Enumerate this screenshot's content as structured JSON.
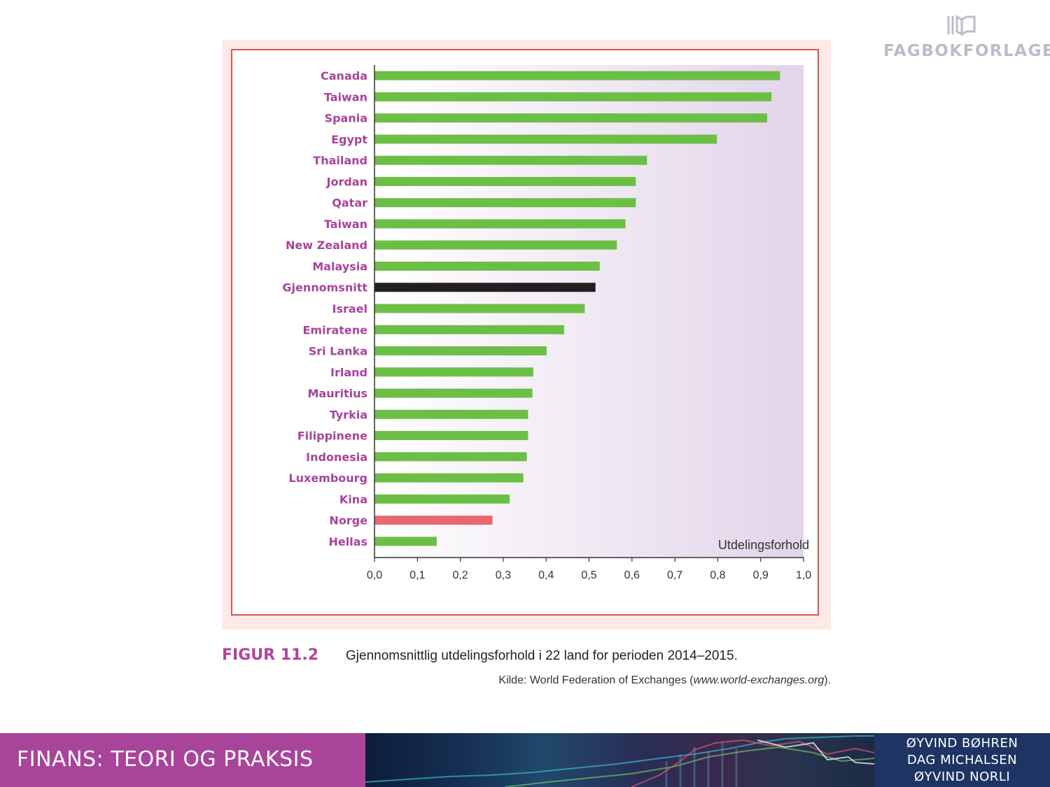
{
  "publisher": {
    "name": "FAGBOKFORLAGET",
    "logo_icon": "book-icon"
  },
  "chart_data": {
    "type": "bar",
    "orientation": "horizontal",
    "categories": [
      "Canada",
      "Taiwan",
      "Spania",
      "Egypt",
      "Thailand",
      "Jordan",
      "Qatar",
      "Taiwan",
      "New Zealand",
      "Malaysia",
      "Gjennomsnitt",
      "Israel",
      "Emiratene",
      "Sri Lanka",
      "Irland",
      "Mauritius",
      "Tyrkia",
      "Filippinene",
      "Indonesia",
      "Luxembourg",
      "Kina",
      "Norge",
      "Hellas"
    ],
    "values": [
      0.945,
      0.925,
      0.915,
      0.798,
      0.635,
      0.609,
      0.609,
      0.585,
      0.565,
      0.525,
      0.515,
      0.49,
      0.442,
      0.401,
      0.37,
      0.368,
      0.358,
      0.358,
      0.355,
      0.347,
      0.315,
      0.275,
      0.145
    ],
    "highlight": {
      "Gjennomsnitt": "#231f20",
      "Norge": "#e8696d"
    },
    "bar_color": "#6cbf46",
    "label_color": "#a8449a",
    "xlabel": "Utdelingsforhold",
    "xlim": [
      0,
      1.0
    ],
    "xticks": [
      "0,0",
      "0,1",
      "0,2",
      "0,3",
      "0,4",
      "0,5",
      "0,6",
      "0,7",
      "0,8",
      "0,9",
      "1,0"
    ],
    "grid": false,
    "background_gradient": [
      "#ffffff",
      "#e2d4e9"
    ]
  },
  "caption": {
    "label": "FIGUR 11.2",
    "text": "Gjennomsnittlig utdelingsforhold i 22 land for perioden 2014–2015.",
    "source_prefix": "Kilde: World Federation of Exchanges (",
    "source_url": "www.world-exchanges.org",
    "source_suffix": ")."
  },
  "footer": {
    "book_title": "FINANS: TEORI OG PRAKSIS",
    "authors": [
      "ØYVIND BØHREN",
      "DAG MICHALSEN",
      "ØYVIND NORLI"
    ]
  }
}
